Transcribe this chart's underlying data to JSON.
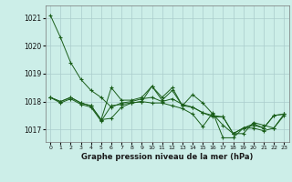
{
  "title": "Graphe pression niveau de la mer (hPa)",
  "bg_color": "#cceee8",
  "grid_color": "#aacccc",
  "line_color": "#1a5e1a",
  "xlim": [
    -0.5,
    23.5
  ],
  "ylim": [
    1016.55,
    1021.45
  ],
  "yticks": [
    1017,
    1018,
    1019,
    1020,
    1021
  ],
  "xticks": [
    0,
    1,
    2,
    3,
    4,
    5,
    6,
    7,
    8,
    9,
    10,
    11,
    12,
    13,
    14,
    15,
    16,
    17,
    18,
    19,
    20,
    21,
    22,
    23
  ],
  "series": [
    [
      1021.1,
      1020.3,
      1019.4,
      1018.8,
      1018.4,
      1018.15,
      1017.8,
      1017.95,
      1018.0,
      1018.1,
      1018.15,
      1018.0,
      1018.1,
      1017.9,
      1017.8,
      1017.6,
      1017.45,
      1017.45,
      1016.85,
      1016.85,
      1017.25,
      1017.15,
      1017.05,
      1017.5
    ],
    [
      1018.15,
      1018.0,
      1018.15,
      1017.95,
      1017.85,
      1017.35,
      1017.4,
      1017.8,
      1017.95,
      1018.0,
      1018.55,
      1018.05,
      1018.4,
      1017.85,
      1018.25,
      1017.95,
      1017.55,
      1017.15,
      1016.85,
      1017.05,
      1017.15,
      1017.05,
      1017.5,
      1017.55
    ],
    [
      1018.15,
      1018.0,
      1018.15,
      1017.95,
      1017.85,
      1017.35,
      1018.5,
      1018.05,
      1018.05,
      1018.15,
      1018.55,
      1018.15,
      1018.5,
      1017.85,
      1017.8,
      1017.6,
      1017.5,
      1017.45,
      1016.85,
      1017.05,
      1017.2,
      1017.05,
      1017.5,
      1017.55
    ],
    [
      1018.15,
      1017.95,
      1018.1,
      1017.9,
      1017.8,
      1017.3,
      1017.85,
      1017.9,
      1017.95,
      1018.0,
      1017.95,
      1017.95,
      1017.85,
      1017.75,
      1017.55,
      1017.1,
      1017.6,
      1016.7,
      1016.7,
      1017.05,
      1017.05,
      1016.95,
      1017.05,
      1017.55
    ]
  ]
}
